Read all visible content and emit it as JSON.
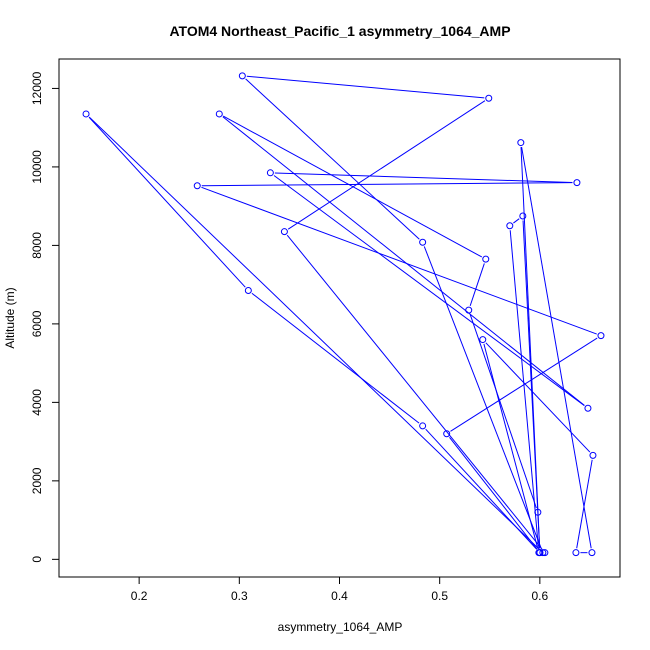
{
  "chart_data": {
    "type": "line",
    "title": "ATOM4 Northeast_Pacific_1 asymmetry_1064_AMP",
    "xlabel": "asymmetry_1064_AMP",
    "ylabel": "Altitude (m)",
    "xlim": [
      0.12,
      0.68
    ],
    "ylim": [
      -450,
      12750
    ],
    "xticks": [
      0.2,
      0.3,
      0.4,
      0.5,
      0.6
    ],
    "xtick_labels": [
      "0.2",
      "0.3",
      "0.4",
      "0.5",
      "0.6"
    ],
    "yticks": [
      0,
      2000,
      4000,
      6000,
      8000,
      10000,
      12000
    ],
    "ytick_labels": [
      "0",
      "2000",
      "4000",
      "6000",
      "8000",
      "10000",
      "12000"
    ],
    "grid": false,
    "legend": "none",
    "series": [
      {
        "color": "#0000ff",
        "marker": "open-circle",
        "x": [
          0.605,
          0.345,
          0.549,
          0.303,
          0.483,
          0.603,
          0.147,
          0.309,
          0.483,
          0.6,
          0.583,
          0.57,
          0.599,
          0.543,
          0.653,
          0.636,
          0.652,
          0.581,
          0.6,
          0.507,
          0.661,
          0.258,
          0.637,
          0.331,
          0.648,
          0.28,
          0.546,
          0.529,
          0.598
        ],
        "y": [
          170,
          8350,
          11750,
          12320,
          8080,
          170,
          11350,
          6850,
          3400,
          170,
          8750,
          8500,
          170,
          5600,
          2650,
          170,
          170,
          10620,
          170,
          3200,
          5700,
          9520,
          9600,
          9850,
          3850,
          11350,
          7650,
          6350,
          1200
        ]
      }
    ]
  }
}
